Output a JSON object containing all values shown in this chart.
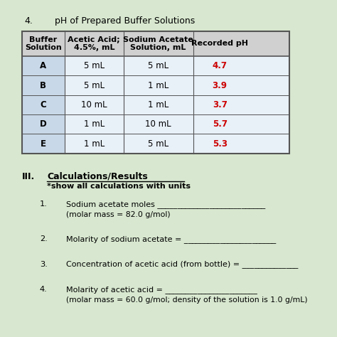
{
  "title_num": "4.",
  "title_text": "pH of Prepared Buffer Solutions",
  "table_headers": [
    "Buffer\nSolution",
    "Acetic Acid;\n4.5%, mL",
    "Sodium Acetate\nSolution, mL",
    "Recorded pH"
  ],
  "table_rows": [
    [
      "A",
      "5 mL",
      "5 mL",
      "4.7"
    ],
    [
      "B",
      "5 mL",
      "1 mL",
      "3.9"
    ],
    [
      "C",
      "10 mL",
      "1 mL",
      "3.7"
    ],
    [
      "D",
      "1 mL",
      "10 mL",
      "5.7"
    ],
    [
      "E",
      "1 mL",
      "5 mL",
      "5.3"
    ]
  ],
  "ph_color": "#cc0000",
  "header_bg": "#d0d0d0",
  "col_bg": "#c8d8e8",
  "row_bg": "#e8f0f8",
  "border_color": "#555555",
  "section_label": "III.",
  "section_title": "Calculations/Results",
  "section_subtitle": "*show all calculations with units",
  "calc_items": [
    {
      "num": "1.",
      "text": "Sodium acetate moles ___________________________\n(molar mass = 82.0 g/mol)"
    },
    {
      "num": "2.",
      "text": "Molarity of sodium acetate = _______________________"
    },
    {
      "num": "3.",
      "text": "Concentration of acetic acid (from bottle) = ______________"
    },
    {
      "num": "4.",
      "text": "Molarity of acetic acid = _______________________\n(molar mass = 60.0 g/mol; density of the solution is 1.0 g/mL)"
    }
  ],
  "bg_color": "#d8e8d0",
  "font_size_title": 9,
  "font_size_header": 8,
  "font_size_body": 8.5,
  "font_size_section": 9
}
